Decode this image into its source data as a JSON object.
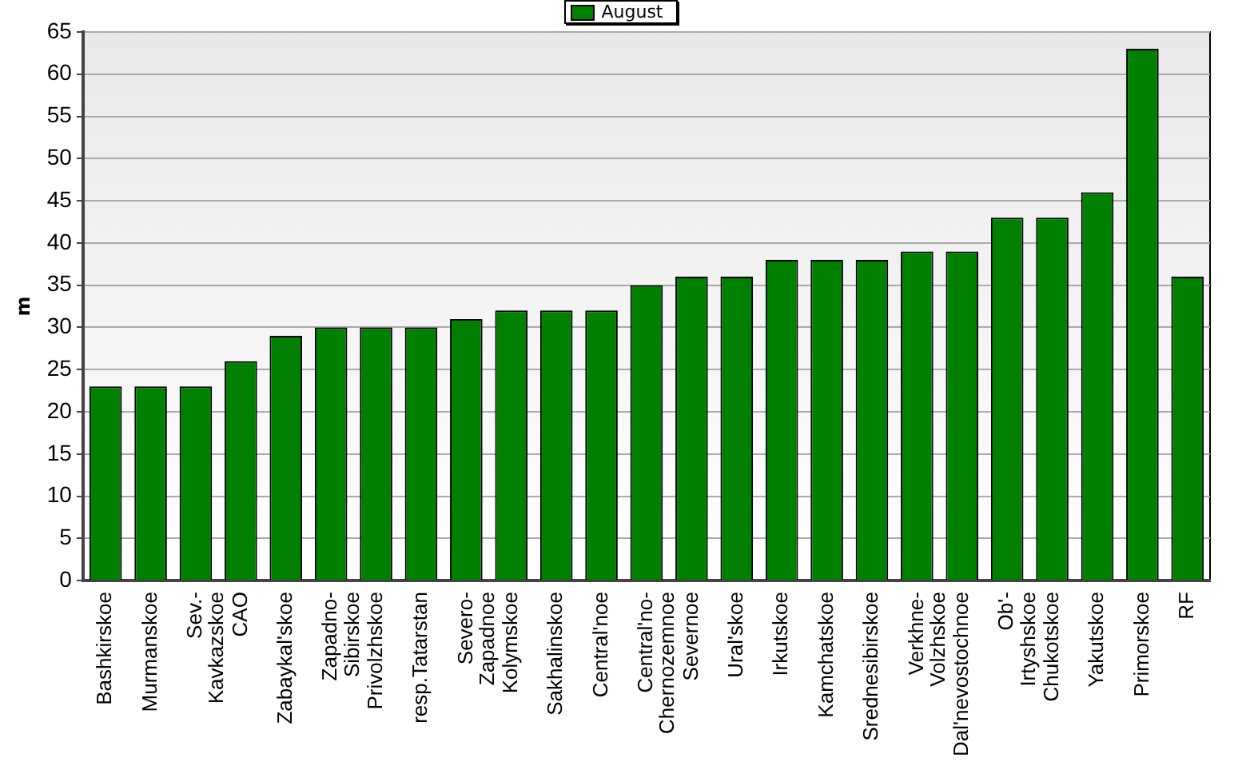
{
  "chart_data": {
    "type": "bar",
    "ylabel": "m",
    "categories": [
      "Bashkirskoe",
      "Murmanskoe",
      "Sev.-\nKavkazskoe",
      "CAO",
      "Zabaykal'skoe",
      "Zapadno-\nSibirskoe",
      "Privolzhskoe",
      "resp.Tatarstan",
      "Severo-\nZapadnoe",
      "Kolymskoe",
      "Sakhalinskoe",
      "Central'noe",
      "Central'no-\nChernozemnoe",
      "Severnoe",
      "Ural'skoe",
      "Irkutskoe",
      "Kamchatskoe",
      "Srednesibirskoe",
      "Verkhne-\nVolzhskoe",
      "Dal'nevostochnoe",
      "Ob'-\nIrtyshskoe",
      "Chukotskoe",
      "Yakutskoe",
      "Primorskoe",
      "RF"
    ],
    "series": [
      {
        "name": "August",
        "color": "#008000",
        "values": [
          23,
          23,
          23,
          26,
          29,
          30,
          30,
          30,
          31,
          32,
          32,
          32,
          35,
          36,
          36,
          38,
          38,
          38,
          39,
          39,
          43,
          43,
          46,
          63,
          36
        ]
      }
    ],
    "ylim": [
      0,
      65
    ],
    "yticks": [
      0,
      5,
      10,
      15,
      20,
      25,
      30,
      35,
      40,
      45,
      50,
      55,
      60,
      65
    ],
    "grid": "y",
    "legend": "top"
  }
}
